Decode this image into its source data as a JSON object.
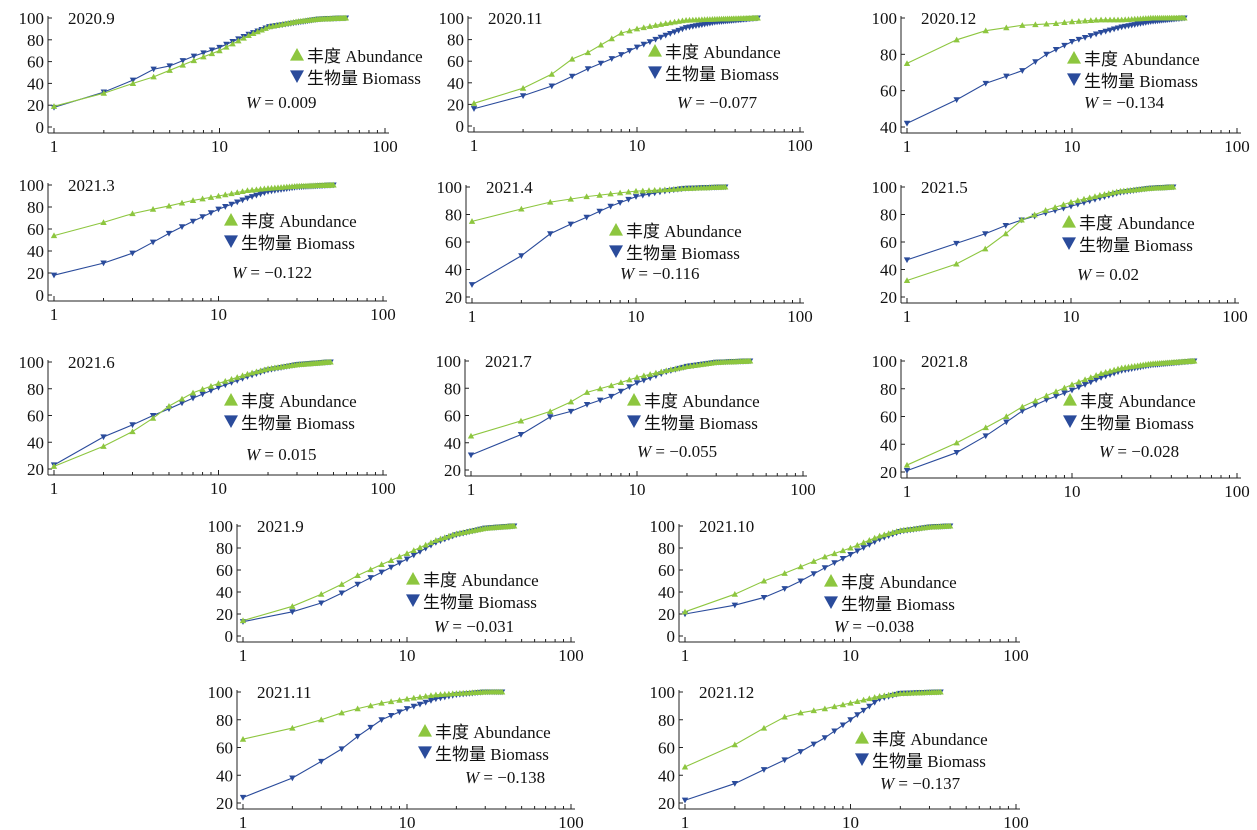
{
  "legend": {
    "abundance_label": "丰度 Abundance",
    "biomass_label": "生物量 Biomass",
    "w_symbol": "W"
  },
  "colors": {
    "abundance": "#8dc63f",
    "biomass": "#2a4b9b",
    "axis": "#222222"
  },
  "chart_data": [
    {
      "type": "line",
      "title": "2020.9",
      "xscale": "log",
      "xticks": [
        "1",
        "10",
        "100"
      ],
      "ylim": [
        0,
        100
      ],
      "yticks": [
        0,
        20,
        40,
        60,
        80,
        100
      ],
      "w": "= 0.009",
      "series": [
        {
          "name": "丰度 Abundance",
          "x": [
            1,
            2,
            3,
            4,
            5,
            7,
            10,
            15,
            20,
            30,
            40,
            58
          ],
          "y": [
            19,
            31,
            40,
            46,
            52,
            61,
            70,
            84,
            92,
            97,
            99,
            100
          ]
        },
        {
          "name": "生物量 Biomass",
          "x": [
            1,
            2,
            3,
            4,
            5,
            7,
            10,
            15,
            20,
            30,
            40,
            58
          ],
          "y": [
            18,
            32,
            43,
            53,
            56,
            65,
            73,
            85,
            92,
            96,
            99,
            100
          ]
        }
      ]
    },
    {
      "type": "line",
      "title": "2020.11",
      "xscale": "log",
      "xticks": [
        "1",
        "10",
        "100"
      ],
      "ylim": [
        0,
        100
      ],
      "yticks": [
        0,
        20,
        40,
        60,
        80,
        100
      ],
      "w": "= −0.077",
      "series": [
        {
          "name": "丰度 Abundance",
          "x": [
            1,
            2,
            3,
            4,
            5,
            6,
            8,
            10,
            15,
            20,
            30,
            55
          ],
          "y": [
            21,
            35,
            48,
            62,
            68,
            75,
            86,
            90,
            95,
            98,
            99,
            100
          ]
        },
        {
          "name": "生物量 Biomass",
          "x": [
            1,
            2,
            3,
            4,
            5,
            6,
            8,
            10,
            15,
            20,
            30,
            55
          ],
          "y": [
            16,
            28,
            37,
            46,
            53,
            58,
            66,
            73,
            84,
            91,
            96,
            100
          ]
        }
      ]
    },
    {
      "type": "line",
      "title": "2020.12",
      "xscale": "log",
      "xticks": [
        "1",
        "10",
        "100"
      ],
      "ylim": [
        40,
        100
      ],
      "yticks": [
        40,
        60,
        80,
        100
      ],
      "w": "= −0.134",
      "series": [
        {
          "name": "丰度 Abundance",
          "x": [
            1,
            2,
            3,
            5,
            8,
            10,
            15,
            20,
            30,
            48
          ],
          "y": [
            75,
            88,
            93,
            96,
            97,
            98,
            99,
            99,
            100,
            100
          ]
        },
        {
          "name": "生物量 Biomass",
          "x": [
            1,
            2,
            3,
            5,
            7,
            10,
            15,
            20,
            30,
            48
          ],
          "y": [
            42,
            55,
            64,
            71,
            80,
            87,
            92,
            95,
            98,
            100
          ]
        }
      ]
    },
    {
      "type": "line",
      "title": "2021.3",
      "xscale": "log",
      "xticks": [
        "1",
        "10",
        "100"
      ],
      "ylim": [
        0,
        100
      ],
      "yticks": [
        0,
        20,
        40,
        60,
        80,
        100
      ],
      "w": "= −0.122",
      "series": [
        {
          "name": "丰度 Abundance",
          "x": [
            1,
            2,
            3,
            4,
            5,
            7,
            10,
            15,
            20,
            30,
            50
          ],
          "y": [
            54,
            66,
            74,
            78,
            81,
            86,
            90,
            95,
            97,
            99,
            100
          ]
        },
        {
          "name": "生物量 Biomass",
          "x": [
            1,
            2,
            3,
            4,
            5,
            7,
            10,
            15,
            20,
            30,
            50
          ],
          "y": [
            18,
            29,
            38,
            48,
            56,
            67,
            78,
            88,
            94,
            98,
            100
          ]
        }
      ]
    },
    {
      "type": "line",
      "title": "2021.4",
      "xscale": "log",
      "xticks": [
        "1",
        "10",
        "100"
      ],
      "ylim": [
        20,
        100
      ],
      "yticks": [
        20,
        40,
        60,
        80,
        100
      ],
      "w": "= −0.116",
      "series": [
        {
          "name": "丰度 Abundance",
          "x": [
            1,
            2,
            3,
            5,
            7,
            10,
            15,
            20,
            35
          ],
          "y": [
            75,
            84,
            89,
            93,
            95,
            97,
            98,
            99,
            100
          ]
        },
        {
          "name": "生物量 Biomass",
          "x": [
            1,
            2,
            3,
            4,
            5,
            7,
            10,
            15,
            20,
            35
          ],
          "y": [
            29,
            50,
            66,
            73,
            78,
            86,
            93,
            97,
            99,
            100
          ]
        }
      ]
    },
    {
      "type": "line",
      "title": "2021.5",
      "xscale": "log",
      "xticks": [
        "1",
        "10",
        "100"
      ],
      "ylim": [
        20,
        100
      ],
      "yticks": [
        20,
        40,
        60,
        80,
        100
      ],
      "w": "= 0.02",
      "series": [
        {
          "name": "丰度 Abundance",
          "x": [
            1,
            2,
            3,
            4,
            5,
            7,
            10,
            15,
            20,
            30,
            42
          ],
          "y": [
            32,
            44,
            55,
            66,
            76,
            83,
            89,
            94,
            97,
            99,
            100
          ]
        },
        {
          "name": "生物量 Biomass",
          "x": [
            1,
            2,
            3,
            4,
            5,
            7,
            10,
            15,
            20,
            30,
            42
          ],
          "y": [
            47,
            59,
            66,
            72,
            76,
            81,
            86,
            92,
            96,
            99,
            100
          ]
        }
      ]
    },
    {
      "type": "line",
      "title": "2021.6",
      "xscale": "log",
      "xticks": [
        "1",
        "10",
        "100"
      ],
      "ylim": [
        20,
        100
      ],
      "yticks": [
        20,
        40,
        60,
        80,
        100
      ],
      "w": "= 0.015",
      "series": [
        {
          "name": "丰度 Abundance",
          "x": [
            1,
            2,
            3,
            4,
            5,
            7,
            10,
            15,
            20,
            30,
            48
          ],
          "y": [
            22,
            37,
            48,
            58,
            67,
            77,
            84,
            91,
            95,
            98,
            100
          ]
        },
        {
          "name": "生物量 Biomass",
          "x": [
            1,
            2,
            3,
            4,
            5,
            7,
            10,
            15,
            20,
            30,
            48
          ],
          "y": [
            23,
            44,
            53,
            60,
            65,
            73,
            81,
            89,
            94,
            98,
            100
          ]
        }
      ]
    },
    {
      "type": "line",
      "title": "2021.7",
      "xscale": "log",
      "xticks": [
        "1",
        "10",
        "100"
      ],
      "ylim": [
        20,
        100
      ],
      "yticks": [
        20,
        40,
        60,
        80,
        100
      ],
      "w": "= −0.055",
      "series": [
        {
          "name": "丰度 Abundance",
          "x": [
            1,
            2,
            3,
            4,
            5,
            7,
            10,
            15,
            20,
            30,
            48
          ],
          "y": [
            45,
            56,
            63,
            70,
            77,
            82,
            88,
            93,
            96,
            99,
            100
          ]
        },
        {
          "name": "生物量 Biomass",
          "x": [
            1,
            2,
            3,
            4,
            5,
            7,
            10,
            15,
            20,
            30,
            48
          ],
          "y": [
            31,
            46,
            59,
            63,
            68,
            74,
            84,
            92,
            96,
            99,
            100
          ]
        }
      ]
    },
    {
      "type": "line",
      "title": "2021.8",
      "xscale": "log",
      "xticks": [
        "1",
        "10",
        "100"
      ],
      "ylim": [
        20,
        100
      ],
      "yticks": [
        20,
        40,
        60,
        80,
        100
      ],
      "w": "= −0.028",
      "series": [
        {
          "name": "丰度 Abundance",
          "x": [
            1,
            2,
            3,
            4,
            5,
            7,
            10,
            15,
            20,
            30,
            55
          ],
          "y": [
            25,
            41,
            52,
            60,
            67,
            75,
            83,
            91,
            95,
            98,
            100
          ]
        },
        {
          "name": "生物量 Biomass",
          "x": [
            1,
            2,
            3,
            4,
            5,
            7,
            10,
            15,
            20,
            30,
            55
          ],
          "y": [
            21,
            34,
            46,
            56,
            64,
            72,
            79,
            88,
            93,
            97,
            100
          ]
        }
      ]
    },
    {
      "type": "line",
      "title": "2021.9",
      "xscale": "log",
      "xticks": [
        "1",
        "10",
        "100"
      ],
      "ylim": [
        0,
        100
      ],
      "yticks": [
        0,
        20,
        40,
        60,
        80,
        100
      ],
      "w": "= −0.031",
      "series": [
        {
          "name": "丰度 Abundance",
          "x": [
            1,
            2,
            3,
            4,
            5,
            7,
            10,
            15,
            20,
            30,
            45
          ],
          "y": [
            14,
            27,
            38,
            47,
            55,
            65,
            75,
            87,
            93,
            98,
            100
          ]
        },
        {
          "name": "生物量 Biomass",
          "x": [
            1,
            2,
            3,
            4,
            5,
            7,
            10,
            15,
            20,
            30,
            45
          ],
          "y": [
            13,
            22,
            30,
            39,
            47,
            58,
            70,
            85,
            92,
            98,
            100
          ]
        }
      ]
    },
    {
      "type": "line",
      "title": "2021.10",
      "xscale": "log",
      "xticks": [
        "1",
        "10",
        "100"
      ],
      "ylim": [
        0,
        100
      ],
      "yticks": [
        0,
        20,
        40,
        60,
        80,
        100
      ],
      "w": "= −0.038",
      "series": [
        {
          "name": "丰度 Abundance",
          "x": [
            1,
            2,
            3,
            4,
            5,
            7,
            10,
            15,
            20,
            30,
            40
          ],
          "y": [
            22,
            38,
            50,
            57,
            63,
            72,
            80,
            91,
            96,
            99,
            100
          ]
        },
        {
          "name": "生物量 Biomass",
          "x": [
            1,
            2,
            3,
            4,
            5,
            7,
            10,
            15,
            20,
            30,
            40
          ],
          "y": [
            20,
            28,
            35,
            43,
            50,
            62,
            74,
            88,
            95,
            99,
            100
          ]
        }
      ]
    },
    {
      "type": "line",
      "title": "2021.11",
      "xscale": "log",
      "xticks": [
        "1",
        "10",
        "100"
      ],
      "ylim": [
        20,
        100
      ],
      "yticks": [
        20,
        40,
        60,
        80,
        100
      ],
      "w": "= −0.138",
      "series": [
        {
          "name": "丰度 Abundance",
          "x": [
            1,
            2,
            3,
            4,
            5,
            7,
            10,
            15,
            20,
            30,
            38
          ],
          "y": [
            66,
            74,
            80,
            85,
            88,
            92,
            95,
            98,
            99,
            100,
            100
          ]
        },
        {
          "name": "生物量 Biomass",
          "x": [
            1,
            2,
            3,
            4,
            5,
            7,
            10,
            15,
            20,
            30,
            38
          ],
          "y": [
            24,
            38,
            50,
            59,
            68,
            80,
            88,
            95,
            98,
            100,
            100
          ]
        }
      ]
    },
    {
      "type": "line",
      "title": "2021.12",
      "xscale": "log",
      "xticks": [
        "1",
        "10",
        "100"
      ],
      "ylim": [
        20,
        100
      ],
      "yticks": [
        20,
        40,
        60,
        80,
        100
      ],
      "w": "= −0.137",
      "series": [
        {
          "name": "丰度 Abundance",
          "x": [
            1,
            2,
            3,
            4,
            5,
            7,
            10,
            15,
            20,
            35
          ],
          "y": [
            46,
            62,
            74,
            82,
            85,
            88,
            92,
            97,
            99,
            100
          ]
        },
        {
          "name": "生物量 Biomass",
          "x": [
            1,
            2,
            3,
            4,
            5,
            7,
            10,
            15,
            20,
            35
          ],
          "y": [
            22,
            34,
            44,
            51,
            57,
            67,
            80,
            95,
            99,
            100
          ]
        }
      ]
    }
  ]
}
